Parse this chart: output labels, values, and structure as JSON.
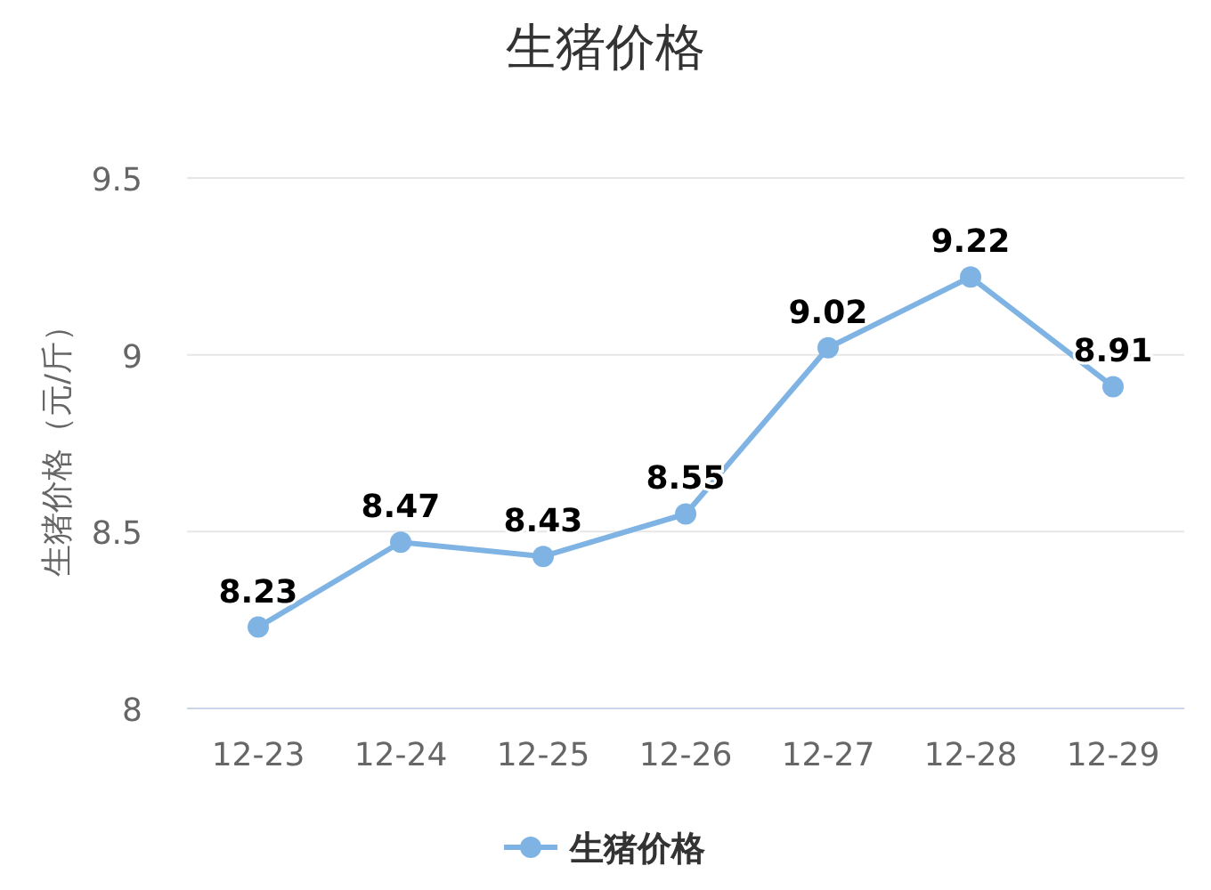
{
  "chart_data": {
    "type": "line",
    "title": "生猪价格",
    "ylabel": "生猪价格（元/斤）",
    "categories": [
      "12-23",
      "12-24",
      "12-25",
      "12-26",
      "12-27",
      "12-28",
      "12-29"
    ],
    "series": [
      {
        "name": "生猪价格",
        "color": "#7eb3e3",
        "values": [
          8.23,
          8.47,
          8.43,
          8.55,
          9.02,
          9.22,
          8.91
        ]
      }
    ],
    "ylim": [
      8,
      9.5
    ],
    "yticks": [
      8,
      8.5,
      9,
      9.5
    ],
    "grid": "y",
    "legend": "bottom",
    "marker": "circle",
    "line_style": "solid",
    "data_labels": true
  }
}
